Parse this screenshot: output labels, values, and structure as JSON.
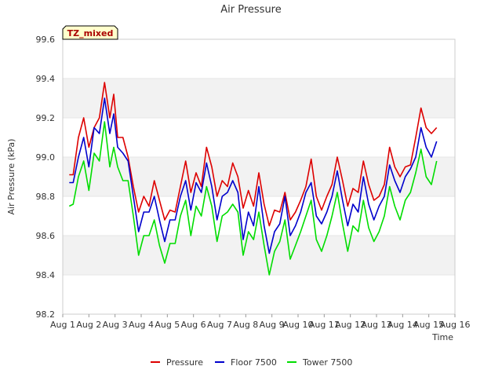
{
  "chart_data": {
    "type": "line",
    "title": "Air Pressure",
    "xlabel": "Time",
    "ylabel": "Air Pressure (kPa)",
    "xlim": [
      1,
      16
    ],
    "ylim": [
      98.2,
      99.6
    ],
    "x_ticks": [
      {
        "v": 1,
        "label": "Aug 1"
      },
      {
        "v": 2,
        "label": "Aug 2"
      },
      {
        "v": 3,
        "label": "Aug 3"
      },
      {
        "v": 4,
        "label": "Aug 4"
      },
      {
        "v": 5,
        "label": "Aug 5"
      },
      {
        "v": 6,
        "label": "Aug 6"
      },
      {
        "v": 7,
        "label": "Aug 7"
      },
      {
        "v": 8,
        "label": "Aug 8"
      },
      {
        "v": 9,
        "label": "Aug 9"
      },
      {
        "v": 10,
        "label": "Aug 10"
      },
      {
        "v": 11,
        "label": "Aug 11"
      },
      {
        "v": 12,
        "label": "Aug 12"
      },
      {
        "v": 13,
        "label": "Aug 13"
      },
      {
        "v": 14,
        "label": "Aug 14"
      },
      {
        "v": 15,
        "label": "Aug 15"
      },
      {
        "v": 16,
        "label": "Aug 16"
      }
    ],
    "y_ticks": [
      {
        "v": 98.2,
        "label": "98.2"
      },
      {
        "v": 98.4,
        "label": "98.4"
      },
      {
        "v": 98.6,
        "label": "98.6"
      },
      {
        "v": 98.8,
        "label": "98.8"
      },
      {
        "v": 99.0,
        "label": "99.0"
      },
      {
        "v": 99.2,
        "label": "99.2"
      },
      {
        "v": 99.4,
        "label": "99.4"
      },
      {
        "v": 99.6,
        "label": "99.6"
      }
    ],
    "grid": "horizontal-bands",
    "legend_position": "bottom",
    "annotation": "TZ_mixed",
    "series": [
      {
        "name": "Pressure",
        "color": "#dd0000",
        "points": [
          [
            1.25,
            98.91
          ],
          [
            1.4,
            98.91
          ],
          [
            1.6,
            99.1
          ],
          [
            1.8,
            99.2
          ],
          [
            2.0,
            99.05
          ],
          [
            2.2,
            99.15
          ],
          [
            2.4,
            99.2
          ],
          [
            2.6,
            99.38
          ],
          [
            2.8,
            99.2
          ],
          [
            2.95,
            99.32
          ],
          [
            3.1,
            99.1
          ],
          [
            3.3,
            99.1
          ],
          [
            3.5,
            99.0
          ],
          [
            3.7,
            98.85
          ],
          [
            3.9,
            98.72
          ],
          [
            4.1,
            98.8
          ],
          [
            4.3,
            98.75
          ],
          [
            4.5,
            98.88
          ],
          [
            4.7,
            98.78
          ],
          [
            4.9,
            98.68
          ],
          [
            5.1,
            98.73
          ],
          [
            5.3,
            98.72
          ],
          [
            5.5,
            98.85
          ],
          [
            5.7,
            98.98
          ],
          [
            5.9,
            98.82
          ],
          [
            6.1,
            98.92
          ],
          [
            6.3,
            98.85
          ],
          [
            6.5,
            99.05
          ],
          [
            6.7,
            98.95
          ],
          [
            6.9,
            98.8
          ],
          [
            7.1,
            98.88
          ],
          [
            7.3,
            98.85
          ],
          [
            7.5,
            98.97
          ],
          [
            7.7,
            98.9
          ],
          [
            7.9,
            98.74
          ],
          [
            8.1,
            98.83
          ],
          [
            8.3,
            98.75
          ],
          [
            8.5,
            98.92
          ],
          [
            8.7,
            98.76
          ],
          [
            8.9,
            98.65
          ],
          [
            9.1,
            98.73
          ],
          [
            9.3,
            98.72
          ],
          [
            9.5,
            98.82
          ],
          [
            9.7,
            98.68
          ],
          [
            9.9,
            98.72
          ],
          [
            10.1,
            98.78
          ],
          [
            10.3,
            98.85
          ],
          [
            10.5,
            98.99
          ],
          [
            10.7,
            98.8
          ],
          [
            10.9,
            98.73
          ],
          [
            11.1,
            98.8
          ],
          [
            11.3,
            98.86
          ],
          [
            11.5,
            99.0
          ],
          [
            11.7,
            98.88
          ],
          [
            11.9,
            98.75
          ],
          [
            12.1,
            98.84
          ],
          [
            12.3,
            98.82
          ],
          [
            12.5,
            98.98
          ],
          [
            12.7,
            98.86
          ],
          [
            12.9,
            98.78
          ],
          [
            13.1,
            98.8
          ],
          [
            13.3,
            98.86
          ],
          [
            13.5,
            99.05
          ],
          [
            13.7,
            98.95
          ],
          [
            13.9,
            98.9
          ],
          [
            14.1,
            98.95
          ],
          [
            14.3,
            98.96
          ],
          [
            14.5,
            99.1
          ],
          [
            14.7,
            99.25
          ],
          [
            14.9,
            99.15
          ],
          [
            15.1,
            99.12
          ],
          [
            15.3,
            99.15
          ]
        ]
      },
      {
        "name": "Floor 7500",
        "color": "#0000cc",
        "points": [
          [
            1.25,
            98.87
          ],
          [
            1.4,
            98.87
          ],
          [
            1.6,
            99.0
          ],
          [
            1.8,
            99.1
          ],
          [
            2.0,
            98.95
          ],
          [
            2.2,
            99.15
          ],
          [
            2.4,
            99.12
          ],
          [
            2.6,
            99.3
          ],
          [
            2.8,
            99.12
          ],
          [
            2.95,
            99.22
          ],
          [
            3.1,
            99.05
          ],
          [
            3.3,
            99.02
          ],
          [
            3.5,
            98.98
          ],
          [
            3.7,
            98.8
          ],
          [
            3.9,
            98.62
          ],
          [
            4.1,
            98.72
          ],
          [
            4.3,
            98.72
          ],
          [
            4.5,
            98.8
          ],
          [
            4.7,
            98.68
          ],
          [
            4.9,
            98.57
          ],
          [
            5.1,
            98.68
          ],
          [
            5.3,
            98.68
          ],
          [
            5.5,
            98.8
          ],
          [
            5.7,
            98.88
          ],
          [
            5.9,
            98.73
          ],
          [
            6.1,
            98.87
          ],
          [
            6.3,
            98.82
          ],
          [
            6.5,
            98.97
          ],
          [
            6.7,
            98.85
          ],
          [
            6.9,
            98.68
          ],
          [
            7.1,
            98.8
          ],
          [
            7.3,
            98.82
          ],
          [
            7.5,
            98.88
          ],
          [
            7.7,
            98.82
          ],
          [
            7.9,
            98.58
          ],
          [
            8.1,
            98.72
          ],
          [
            8.3,
            98.65
          ],
          [
            8.5,
            98.85
          ],
          [
            8.7,
            98.65
          ],
          [
            8.9,
            98.51
          ],
          [
            9.1,
            98.62
          ],
          [
            9.3,
            98.66
          ],
          [
            9.5,
            98.8
          ],
          [
            9.7,
            98.6
          ],
          [
            9.9,
            98.65
          ],
          [
            10.1,
            98.72
          ],
          [
            10.3,
            98.82
          ],
          [
            10.5,
            98.87
          ],
          [
            10.7,
            98.7
          ],
          [
            10.9,
            98.66
          ],
          [
            11.1,
            98.72
          ],
          [
            11.3,
            98.8
          ],
          [
            11.5,
            98.93
          ],
          [
            11.7,
            98.78
          ],
          [
            11.9,
            98.65
          ],
          [
            12.1,
            98.76
          ],
          [
            12.3,
            98.72
          ],
          [
            12.5,
            98.9
          ],
          [
            12.7,
            98.76
          ],
          [
            12.9,
            98.68
          ],
          [
            13.1,
            98.75
          ],
          [
            13.3,
            98.8
          ],
          [
            13.5,
            98.96
          ],
          [
            13.7,
            98.88
          ],
          [
            13.9,
            98.82
          ],
          [
            14.1,
            98.9
          ],
          [
            14.3,
            98.94
          ],
          [
            14.5,
            99.0
          ],
          [
            14.7,
            99.15
          ],
          [
            14.9,
            99.05
          ],
          [
            15.1,
            99.0
          ],
          [
            15.3,
            99.08
          ]
        ]
      },
      {
        "name": "Tower 7500",
        "color": "#00dd00",
        "points": [
          [
            1.25,
            98.75
          ],
          [
            1.4,
            98.76
          ],
          [
            1.6,
            98.9
          ],
          [
            1.8,
            98.98
          ],
          [
            2.0,
            98.83
          ],
          [
            2.2,
            99.02
          ],
          [
            2.4,
            98.98
          ],
          [
            2.6,
            99.18
          ],
          [
            2.8,
            98.95
          ],
          [
            2.95,
            99.05
          ],
          [
            3.1,
            98.95
          ],
          [
            3.3,
            98.88
          ],
          [
            3.5,
            98.88
          ],
          [
            3.7,
            98.7
          ],
          [
            3.9,
            98.5
          ],
          [
            4.1,
            98.6
          ],
          [
            4.3,
            98.6
          ],
          [
            4.5,
            98.68
          ],
          [
            4.7,
            98.55
          ],
          [
            4.9,
            98.46
          ],
          [
            5.1,
            98.56
          ],
          [
            5.3,
            98.56
          ],
          [
            5.5,
            98.7
          ],
          [
            5.7,
            98.78
          ],
          [
            5.9,
            98.6
          ],
          [
            6.1,
            98.75
          ],
          [
            6.3,
            98.7
          ],
          [
            6.5,
            98.85
          ],
          [
            6.7,
            98.75
          ],
          [
            6.9,
            98.57
          ],
          [
            7.1,
            98.7
          ],
          [
            7.3,
            98.72
          ],
          [
            7.5,
            98.76
          ],
          [
            7.7,
            98.72
          ],
          [
            7.9,
            98.5
          ],
          [
            8.1,
            98.62
          ],
          [
            8.3,
            98.58
          ],
          [
            8.5,
            98.72
          ],
          [
            8.7,
            98.55
          ],
          [
            8.9,
            98.4
          ],
          [
            9.1,
            98.52
          ],
          [
            9.3,
            98.57
          ],
          [
            9.5,
            98.68
          ],
          [
            9.7,
            98.48
          ],
          [
            9.9,
            98.55
          ],
          [
            10.1,
            98.62
          ],
          [
            10.3,
            98.7
          ],
          [
            10.5,
            98.78
          ],
          [
            10.7,
            98.58
          ],
          [
            10.9,
            98.52
          ],
          [
            11.1,
            98.6
          ],
          [
            11.3,
            98.7
          ],
          [
            11.5,
            98.82
          ],
          [
            11.7,
            98.66
          ],
          [
            11.9,
            98.52
          ],
          [
            12.1,
            98.65
          ],
          [
            12.3,
            98.62
          ],
          [
            12.5,
            98.78
          ],
          [
            12.7,
            98.64
          ],
          [
            12.9,
            98.57
          ],
          [
            13.1,
            98.62
          ],
          [
            13.3,
            98.7
          ],
          [
            13.5,
            98.85
          ],
          [
            13.7,
            98.75
          ],
          [
            13.9,
            98.68
          ],
          [
            14.1,
            98.78
          ],
          [
            14.3,
            98.82
          ],
          [
            14.5,
            98.92
          ],
          [
            14.7,
            99.04
          ],
          [
            14.9,
            98.9
          ],
          [
            15.1,
            98.86
          ],
          [
            15.3,
            98.98
          ]
        ]
      }
    ]
  }
}
